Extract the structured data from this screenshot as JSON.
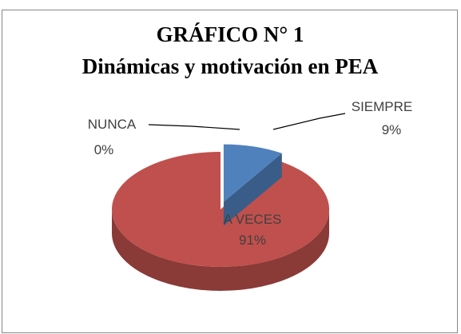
{
  "chart_data": {
    "type": "pie",
    "title": "GRÁFICO N° 1",
    "subtitle": "Dinámicas y motivación en PEA",
    "categories": [
      "SIEMPRE",
      "A VECES",
      "NUNCA"
    ],
    "values": [
      9,
      91,
      0
    ],
    "value_labels": [
      "9%",
      "91%",
      "0%"
    ],
    "colors": [
      "#4f81bd",
      "#c0504d",
      "#9bbb59"
    ]
  }
}
